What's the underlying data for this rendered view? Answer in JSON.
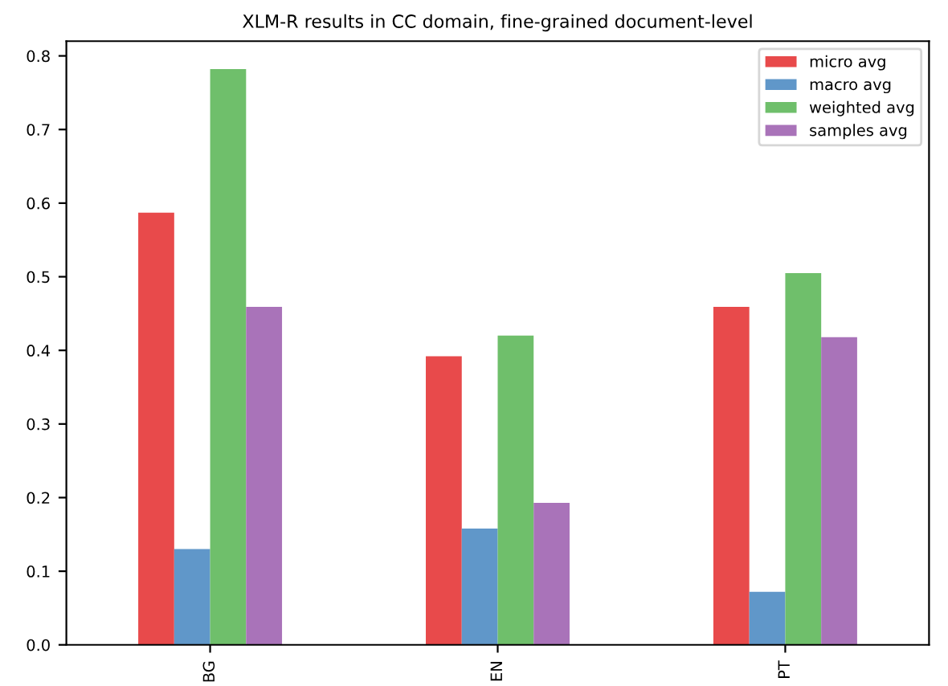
{
  "chart_data": {
    "type": "bar",
    "title": "XLM-R results in CC domain, fine-grained document-level",
    "categories": [
      "BG",
      "EN",
      "PT"
    ],
    "series": [
      {
        "name": "micro avg",
        "color": "#e84a4b",
        "values": [
          0.587,
          0.392,
          0.459
        ]
      },
      {
        "name": "macro avg",
        "color": "#6097c9",
        "values": [
          0.13,
          0.158,
          0.072
        ]
      },
      {
        "name": "weighted avg",
        "color": "#6fbf6b",
        "values": [
          0.782,
          0.42,
          0.505
        ]
      },
      {
        "name": "samples avg",
        "color": "#a973b9",
        "values": [
          0.459,
          0.193,
          0.418
        ]
      }
    ],
    "ylim": [
      0,
      0.82
    ],
    "yticks": [
      {
        "value": 0,
        "label": "0.0"
      },
      0.1,
      0.2,
      0.3,
      0.4,
      0.5,
      0.6,
      0.7,
      0.8
    ],
    "grid": false,
    "legend": "top right"
  }
}
